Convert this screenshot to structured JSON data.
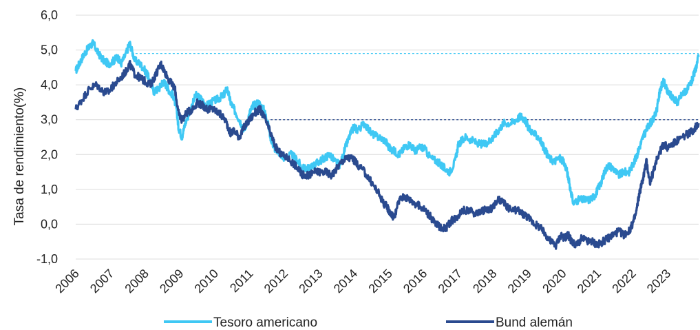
{
  "chart_data": {
    "type": "line",
    "ylabel": "Tasa de rendimiento(%)",
    "ylim": [
      -1.0,
      6.0
    ],
    "xlim": [
      2006.0,
      2023.9
    ],
    "y_ticks": [
      "6,0",
      "5,0",
      "4,0",
      "3,0",
      "2,0",
      "1,0",
      "0,0",
      "-1,0"
    ],
    "x_ticks": [
      "2006",
      "2007",
      "2008",
      "2009",
      "2010",
      "2011",
      "2012",
      "2013",
      "2014",
      "2015",
      "2016",
      "2017",
      "2018",
      "2019",
      "2020",
      "2021",
      "2022",
      "2023"
    ],
    "grid": "horizontal",
    "legend_position": "bottom",
    "series": [
      {
        "name": "Tesoro americano",
        "color": "#3fc8f4",
        "x": [
          2006.0,
          2006.1,
          2006.25,
          2006.4,
          2006.5,
          2006.65,
          2006.8,
          2006.95,
          2007.1,
          2007.2,
          2007.3,
          2007.45,
          2007.55,
          2007.7,
          2007.85,
          2008.0,
          2008.1,
          2008.25,
          2008.4,
          2008.5,
          2008.6,
          2008.7,
          2008.8,
          2008.9,
          2008.95,
          2009.05,
          2009.15,
          2009.3,
          2009.45,
          2009.6,
          2009.75,
          2009.9,
          2010.1,
          2010.25,
          2010.35,
          2010.45,
          2010.55,
          2010.7,
          2010.85,
          2011.0,
          2011.1,
          2011.25,
          2011.4,
          2011.5,
          2011.6,
          2011.7,
          2011.8,
          2011.9,
          2012.0,
          2012.2,
          2012.4,
          2012.5,
          2012.7,
          2012.85,
          2013.0,
          2013.15,
          2013.3,
          2013.45,
          2013.6,
          2013.75,
          2013.9,
          2014.0,
          2014.1,
          2014.3,
          2014.5,
          2014.7,
          2014.9,
          2015.0,
          2015.15,
          2015.3,
          2015.45,
          2015.6,
          2015.75,
          2015.9,
          2016.0,
          2016.2,
          2016.4,
          2016.5,
          2016.6,
          2016.75,
          2016.9,
          2017.0,
          2017.2,
          2017.4,
          2017.6,
          2017.75,
          2017.9,
          2018.0,
          2018.15,
          2018.3,
          2018.5,
          2018.65,
          2018.8,
          2018.9,
          2019.0,
          2019.15,
          2019.3,
          2019.45,
          2019.6,
          2019.75,
          2019.9,
          2020.0,
          2020.1,
          2020.2,
          2020.3,
          2020.45,
          2020.6,
          2020.75,
          2020.9,
          2021.0,
          2021.1,
          2021.2,
          2021.3,
          2021.45,
          2021.6,
          2021.75,
          2021.9,
          2022.0,
          2022.1,
          2022.2,
          2022.3,
          2022.4,
          2022.5,
          2022.6,
          2022.7,
          2022.8,
          2022.9,
          2023.0,
          2023.1,
          2023.2,
          2023.3,
          2023.4,
          2023.5,
          2023.6,
          2023.7,
          2023.8,
          2023.9
        ],
        "values": [
          4.4,
          4.6,
          4.9,
          5.1,
          5.2,
          4.9,
          4.7,
          4.6,
          4.7,
          4.8,
          4.6,
          4.9,
          5.2,
          4.7,
          4.6,
          4.4,
          4.2,
          3.8,
          3.9,
          4.1,
          4.0,
          3.8,
          3.7,
          3.3,
          2.8,
          2.5,
          2.9,
          3.3,
          3.7,
          3.6,
          3.4,
          3.5,
          3.6,
          3.7,
          3.9,
          3.5,
          3.3,
          3.0,
          2.7,
          3.2,
          3.4,
          3.5,
          3.3,
          3.0,
          2.5,
          2.2,
          2.1,
          2.0,
          1.9,
          2.0,
          1.8,
          1.6,
          1.6,
          1.7,
          1.8,
          1.9,
          2.0,
          1.8,
          1.7,
          2.2,
          2.6,
          2.8,
          2.7,
          2.9,
          2.6,
          2.5,
          2.4,
          2.2,
          2.1,
          2.0,
          2.2,
          2.3,
          2.1,
          2.2,
          2.2,
          1.9,
          1.8,
          1.7,
          1.6,
          1.5,
          1.8,
          2.3,
          2.5,
          2.4,
          2.3,
          2.3,
          2.4,
          2.5,
          2.7,
          2.9,
          2.9,
          3.0,
          3.1,
          3.0,
          2.8,
          2.6,
          2.5,
          2.2,
          1.9,
          1.8,
          1.9,
          1.8,
          1.6,
          1.1,
          0.6,
          0.7,
          0.7,
          0.7,
          0.8,
          1.0,
          1.2,
          1.5,
          1.7,
          1.6,
          1.4,
          1.5,
          1.5,
          1.7,
          1.9,
          2.2,
          2.5,
          2.7,
          2.9,
          3.0,
          3.3,
          3.9,
          4.1,
          3.8,
          3.7,
          3.6,
          3.5,
          3.7,
          3.8,
          3.9,
          4.1,
          4.4,
          4.8
        ]
      },
      {
        "name": "Bund alemán",
        "color": "#2a4a8f",
        "x": [
          2006.0,
          2006.2,
          2006.4,
          2006.6,
          2006.8,
          2006.95,
          2007.1,
          2007.3,
          2007.45,
          2007.55,
          2007.7,
          2007.85,
          2008.0,
          2008.15,
          2008.3,
          2008.45,
          2008.55,
          2008.7,
          2008.85,
          2008.95,
          2009.05,
          2009.2,
          2009.35,
          2009.5,
          2009.65,
          2009.8,
          2009.95,
          2010.1,
          2010.3,
          2010.45,
          2010.55,
          2010.7,
          2010.85,
          2011.0,
          2011.15,
          2011.3,
          2011.45,
          2011.6,
          2011.75,
          2011.9,
          2012.1,
          2012.3,
          2012.45,
          2012.55,
          2012.7,
          2012.85,
          2013.0,
          2013.2,
          2013.35,
          2013.5,
          2013.65,
          2013.8,
          2013.95,
          2014.1,
          2014.3,
          2014.5,
          2014.7,
          2014.85,
          2014.95,
          2015.05,
          2015.15,
          2015.3,
          2015.45,
          2015.6,
          2015.75,
          2015.9,
          2016.05,
          2016.2,
          2016.35,
          2016.5,
          2016.65,
          2016.8,
          2016.95,
          2017.1,
          2017.3,
          2017.5,
          2017.7,
          2017.85,
          2018.0,
          2018.15,
          2018.3,
          2018.5,
          2018.7,
          2018.85,
          2019.0,
          2019.2,
          2019.35,
          2019.5,
          2019.65,
          2019.8,
          2019.95,
          2020.05,
          2020.15,
          2020.25,
          2020.4,
          2020.55,
          2020.7,
          2020.85,
          2021.0,
          2021.15,
          2021.3,
          2021.45,
          2021.6,
          2021.75,
          2021.9,
          2022.0,
          2022.1,
          2022.2,
          2022.3,
          2022.4,
          2022.5,
          2022.6,
          2022.7,
          2022.8,
          2022.9,
          2023.0,
          2023.15,
          2023.3,
          2023.45,
          2023.6,
          2023.75,
          2023.9
        ],
        "values": [
          3.3,
          3.6,
          3.9,
          4.0,
          3.8,
          3.8,
          4.0,
          4.2,
          4.4,
          4.6,
          4.3,
          4.2,
          4.1,
          4.0,
          4.3,
          4.6,
          4.4,
          4.1,
          3.9,
          3.2,
          3.0,
          3.2,
          3.3,
          3.5,
          3.4,
          3.3,
          3.3,
          3.2,
          3.0,
          2.6,
          2.7,
          2.5,
          2.8,
          3.0,
          3.2,
          3.3,
          3.0,
          2.6,
          2.2,
          2.0,
          1.9,
          1.7,
          1.5,
          1.4,
          1.4,
          1.5,
          1.5,
          1.5,
          1.4,
          1.6,
          1.8,
          1.9,
          1.9,
          1.7,
          1.5,
          1.2,
          0.9,
          0.6,
          0.5,
          0.3,
          0.2,
          0.7,
          0.8,
          0.7,
          0.6,
          0.5,
          0.4,
          0.2,
          0.0,
          -0.1,
          -0.1,
          0.1,
          0.2,
          0.4,
          0.4,
          0.3,
          0.4,
          0.4,
          0.5,
          0.7,
          0.6,
          0.4,
          0.4,
          0.3,
          0.2,
          0.0,
          -0.1,
          -0.3,
          -0.5,
          -0.6,
          -0.3,
          -0.4,
          -0.3,
          -0.5,
          -0.6,
          -0.4,
          -0.5,
          -0.5,
          -0.6,
          -0.5,
          -0.4,
          -0.3,
          -0.2,
          -0.3,
          -0.2,
          0.0,
          0.3,
          0.9,
          1.3,
          1.8,
          1.2,
          1.5,
          1.9,
          2.1,
          2.3,
          2.2,
          2.3,
          2.4,
          2.5,
          2.6,
          2.7,
          2.9
        ]
      }
    ],
    "reference_lines": [
      {
        "y": 4.9,
        "x_start": 2007.6,
        "color": "#3fc8f4"
      },
      {
        "y": 3.0,
        "x_start": 2011.6,
        "color": "#2a4a8f"
      }
    ]
  }
}
